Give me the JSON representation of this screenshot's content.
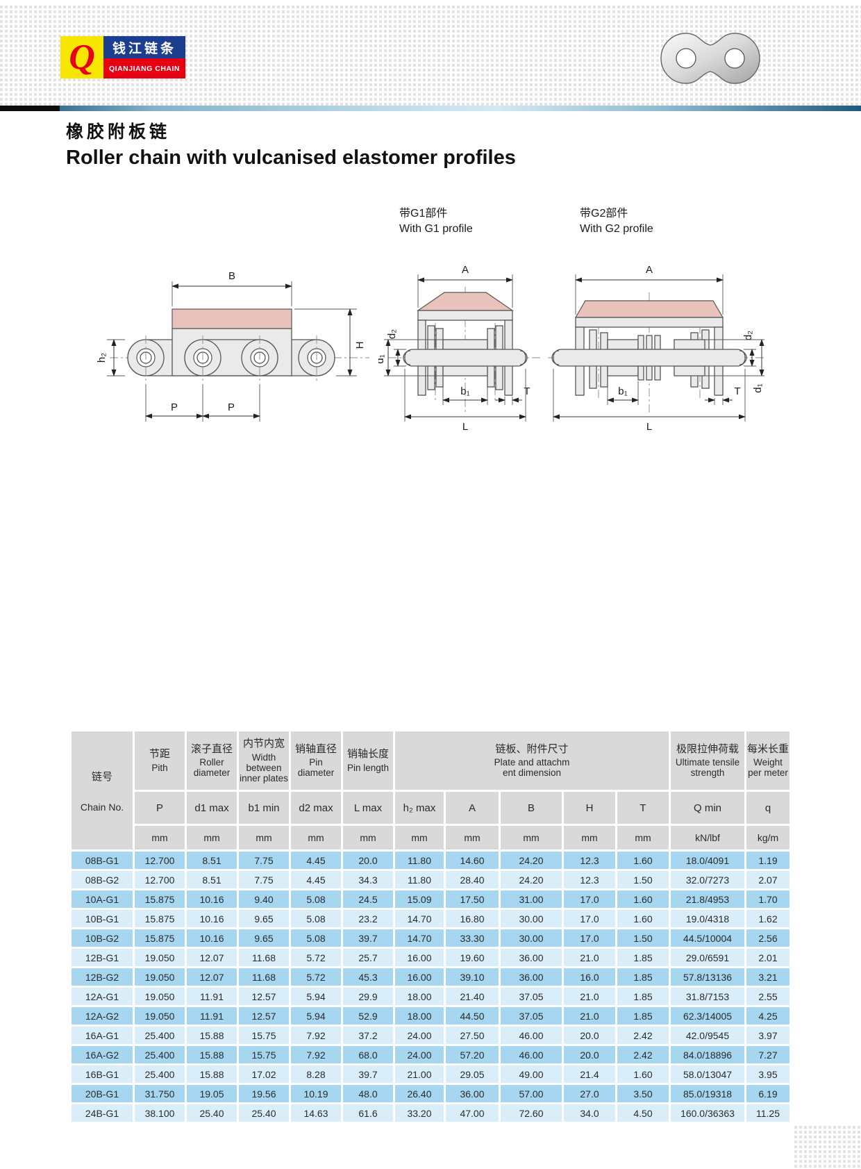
{
  "brand": {
    "monogram": "Q",
    "name_cn": "钱江链条",
    "name_en": "QIANJIANG CHAIN"
  },
  "title": {
    "cn": "橡胶附板链",
    "en": "Roller chain with vulcanised elastomer profiles"
  },
  "figures": {
    "side_view": {
      "dim_B": "B",
      "dim_H": "H",
      "dim_h2": "h₂",
      "dim_P1": "P",
      "dim_P2": "P"
    },
    "g1": {
      "caption_cn": "带G1部件",
      "caption_en": "With G1 profile",
      "dim_A": "A",
      "dim_d2": "d₂",
      "dim_d1": "d₁",
      "dim_b1": "b₁",
      "dim_T": "T",
      "dim_L": "L"
    },
    "g2": {
      "caption_cn": "带G2部件",
      "caption_en": "With G2 profile",
      "dim_A": "A",
      "dim_d2": "d₂",
      "dim_d1": "d₁",
      "dim_b1": "b₁",
      "dim_T": "T",
      "dim_L": "L"
    }
  },
  "colors": {
    "accent_blue": "#1c3e90",
    "accent_red": "#e60012",
    "logo_yellow": "#f6e600",
    "elastomer_pink": "#e9c3bb",
    "header_gray": "#d9d9d9",
    "row_blue": "#a6d6f0",
    "row_light_blue": "#daeefa"
  },
  "table": {
    "groups": {
      "chain": {
        "cn": "链号",
        "en": "Chain No."
      },
      "pitch": {
        "cn": "节距",
        "en": "Pith"
      },
      "roller": {
        "cn": "滚子直径",
        "en": "Roller diameter"
      },
      "width": {
        "cn": "内节内宽",
        "en": "Width between inner plates"
      },
      "pin_d": {
        "cn": "销轴直径",
        "en": "Pin diameter"
      },
      "pin_l": {
        "cn": "销轴长度",
        "en": "Pin length"
      },
      "plate": {
        "cn": "链板、附件尺寸",
        "en": "Plate and attachm\nent dimension"
      },
      "tensile": {
        "cn": "极限拉伸荷载",
        "en": "Ultimate tensile strength"
      },
      "weight": {
        "cn": "每米长重",
        "en": "Weight per meter"
      }
    },
    "sub_headers": [
      "P",
      "d1 max",
      "b1 min",
      "d2 max",
      "L  max",
      "h₂  max",
      "A",
      "B",
      "H",
      "T",
      "Q min",
      "q"
    ],
    "units": [
      "mm",
      "mm",
      "mm",
      "mm",
      "mm",
      "mm",
      "mm",
      "mm",
      "mm",
      "mm",
      "kN/lbf",
      "kg/m"
    ],
    "rows": [
      [
        "08B-G1",
        "12.700",
        "8.51",
        "7.75",
        "4.45",
        "20.0",
        "11.80",
        "14.60",
        "24.20",
        "12.3",
        "1.60",
        "18.0/4091",
        "1.19"
      ],
      [
        "08B-G2",
        "12.700",
        "8.51",
        "7.75",
        "4.45",
        "34.3",
        "11.80",
        "28.40",
        "24.20",
        "12.3",
        "1.50",
        "32.0/7273",
        "2.07"
      ],
      [
        "10A-G1",
        "15.875",
        "10.16",
        "9.40",
        "5.08",
        "24.5",
        "15.09",
        "17.50",
        "31.00",
        "17.0",
        "1.60",
        "21.8/4953",
        "1.70"
      ],
      [
        "10B-G1",
        "15.875",
        "10.16",
        "9.65",
        "5.08",
        "23.2",
        "14.70",
        "16.80",
        "30.00",
        "17.0",
        "1.60",
        "19.0/4318",
        "1.62"
      ],
      [
        "10B-G2",
        "15.875",
        "10.16",
        "9.65",
        "5.08",
        "39.7",
        "14.70",
        "33.30",
        "30.00",
        "17.0",
        "1.50",
        "44.5/10004",
        "2.56"
      ],
      [
        "12B-G1",
        "19.050",
        "12.07",
        "11.68",
        "5.72",
        "25.7",
        "16.00",
        "19.60",
        "36.00",
        "21.0",
        "1.85",
        "29.0/6591",
        "2.01"
      ],
      [
        "12B-G2",
        "19.050",
        "12.07",
        "11.68",
        "5.72",
        "45.3",
        "16.00",
        "39.10",
        "36.00",
        "16.0",
        "1.85",
        "57.8/13136",
        "3.21"
      ],
      [
        "12A-G1",
        "19.050",
        "11.91",
        "12.57",
        "5.94",
        "29.9",
        "18.00",
        "21.40",
        "37.05",
        "21.0",
        "1.85",
        "31.8/7153",
        "2.55"
      ],
      [
        "12A-G2",
        "19.050",
        "11.91",
        "12.57",
        "5.94",
        "52.9",
        "18.00",
        "44.50",
        "37.05",
        "21.0",
        "1.85",
        "62.3/14005",
        "4.25"
      ],
      [
        "16A-G1",
        "25.400",
        "15.88",
        "15.75",
        "7.92",
        "37.2",
        "24.00",
        "27.50",
        "46.00",
        "20.0",
        "2.42",
        "42.0/9545",
        "3.97"
      ],
      [
        "16A-G2",
        "25.400",
        "15.88",
        "15.75",
        "7.92",
        "68.0",
        "24.00",
        "57.20",
        "46.00",
        "20.0",
        "2.42",
        "84.0/18896",
        "7.27"
      ],
      [
        "16B-G1",
        "25.400",
        "15.88",
        "17.02",
        "8.28",
        "39.7",
        "21.00",
        "29.05",
        "49.00",
        "21.4",
        "1.60",
        "58.0/13047",
        "3.95"
      ],
      [
        "20B-G1",
        "31.750",
        "19.05",
        "19.56",
        "10.19",
        "48.0",
        "26.40",
        "36.00",
        "57.00",
        "27.0",
        "3.50",
        "85.0/19318",
        "6.19"
      ],
      [
        "24B-G1",
        "38.100",
        "25.40",
        "25.40",
        "14.63",
        "61.6",
        "33.20",
        "47.00",
        "72.60",
        "34.0",
        "4.50",
        "160.0/36363",
        "11.25"
      ]
    ]
  }
}
